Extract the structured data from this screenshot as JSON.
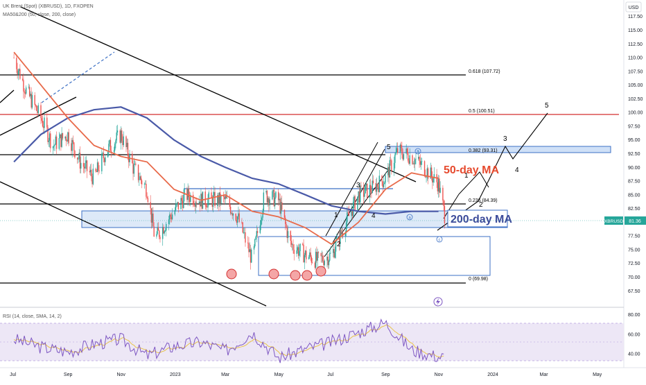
{
  "header": {
    "title": "UK Brent (Spot) (XBRUSD), 1D, FXOPEN",
    "indicator": "MA50&200 (50, close, 200, close)"
  },
  "currency": "USD",
  "price_tag": {
    "symbol": "XBRUSD",
    "value": "81.36"
  },
  "rsi_header": "RSI (14, close, SMA, 14, 2)",
  "annotations": {
    "ma50_label": "50-day MA",
    "ma200_label": "200-day MA"
  },
  "colors": {
    "candle_up": "#26a69a",
    "candle_down": "#ef5350",
    "ma50": "#e86a4a",
    "ma200": "#4a5aa8",
    "fib_black": "#000000",
    "fib_red": "#d32f2f",
    "zone_fill": "#dde9f8",
    "zone_stroke": "#3b6fc4",
    "rsi_line": "#7e57c2",
    "rsi_sma": "#e8c34a",
    "circle_fill": "#f4a6a6"
  },
  "chart_data": [
    {
      "type": "line",
      "title": "UK Brent (Spot) (XBRUSD), 1D, FXOPEN",
      "xlabel": "",
      "ylabel": "USD",
      "x_ticks": [
        "Jul",
        "Sep",
        "Nov",
        "2023",
        "Mar",
        "May",
        "Jul",
        "Sep",
        "Nov",
        "2024",
        "Mar",
        "May"
      ],
      "y_ticks": [
        67.5,
        70.0,
        72.5,
        75.0,
        77.5,
        80.0,
        82.5,
        85.0,
        87.5,
        90.0,
        92.5,
        95.0,
        97.5,
        100.0,
        102.5,
        105.0,
        107.5,
        110.0,
        112.5,
        115.0,
        117.5
      ],
      "ylim": [
        64.5,
        120.5
      ],
      "grid": false,
      "series": [
        {
          "name": "",
          "x": [
            "2022-07-01",
            "2022-07-15",
            "2022-08-01",
            "2022-08-15",
            "2022-09-01",
            "2022-09-15",
            "2022-10-01",
            "2022-10-15",
            "2022-11-01",
            "2022-11-15",
            "2022-12-01",
            "2022-12-10",
            "2023-01-01",
            "2023-01-15",
            "2023-02-01",
            "2023-02-15",
            "2023-03-01",
            "2023-03-15",
            "2023-04-01",
            "2023-04-15",
            "2023-05-01",
            "2023-05-15",
            "2023-06-01",
            "2023-06-15",
            "2023-07-01",
            "2023-07-15",
            "2023-08-01",
            "2023-08-15",
            "2023-09-01",
            "2023-09-15",
            "2023-10-01",
            "2023-10-15",
            "2023-11-01",
            "2023-11-08"
          ],
          "values": [
            110,
            104,
            99,
            94,
            96,
            91,
            88,
            93,
            96,
            90,
            86,
            77,
            82,
            85,
            84,
            84,
            84,
            81,
            73,
            85,
            84,
            76,
            74,
            73,
            74,
            79,
            85,
            86,
            88,
            93,
            92,
            90,
            87,
            81.36
          ]
        },
        {
          "name": "50-day MA",
          "x": [
            "2022-07-01",
            "2022-08-01",
            "2022-09-01",
            "2022-10-01",
            "2022-11-01",
            "2022-12-01",
            "2023-01-01",
            "2023-02-01",
            "2023-03-01",
            "2023-04-01",
            "2023-05-01",
            "2023-06-01",
            "2023-07-01",
            "2023-08-01",
            "2023-09-01",
            "2023-10-01",
            "2023-11-01"
          ],
          "values": [
            111,
            105,
            99,
            94,
            92,
            91,
            86,
            84,
            85,
            82,
            81,
            79,
            76,
            80,
            86,
            89,
            88
          ]
        },
        {
          "name": "200-day MA",
          "x": [
            "2022-07-01",
            "2022-08-01",
            "2022-09-01",
            "2022-10-01",
            "2022-11-01",
            "2022-12-01",
            "2023-01-01",
            "2023-02-01",
            "2023-03-01",
            "2023-04-01",
            "2023-05-01",
            "2023-06-01",
            "2023-07-01",
            "2023-08-01",
            "2023-09-01",
            "2023-10-01",
            "2023-11-01"
          ],
          "values": [
            91,
            96,
            99,
            100.5,
            101,
            99,
            95,
            92,
            90,
            88,
            87,
            85,
            83,
            82,
            81.5,
            82,
            82
          ]
        }
      ],
      "annotations": [
        "0.618 (107.72)",
        "0.5 (100.51)",
        "0.382 (93.31)",
        "0.236 (84.39)",
        "0 (69.98)",
        "1",
        "2",
        "3",
        "4",
        "5",
        "a",
        "b",
        "c"
      ]
    },
    {
      "type": "line",
      "title": "RSI (14, close, SMA, 14, 2)",
      "y_ticks": [
        40.0,
        60.0,
        80.0
      ],
      "ylim": [
        28,
        84
      ],
      "series": [
        {
          "name": "",
          "x": [
            "2022-07-01",
            "2022-08-01",
            "2022-09-01",
            "2022-10-01",
            "2022-11-01",
            "2022-12-01",
            "2023-01-01",
            "2023-02-01",
            "2023-03-01",
            "2023-04-01",
            "2023-05-01",
            "2023-06-01",
            "2023-07-01",
            "2023-08-01",
            "2023-09-01",
            "2023-10-01",
            "2023-11-01"
          ],
          "values": [
            55,
            47,
            42,
            50,
            55,
            38,
            48,
            52,
            43,
            62,
            36,
            45,
            52,
            62,
            72,
            44,
            37
          ]
        }
      ]
    }
  ]
}
